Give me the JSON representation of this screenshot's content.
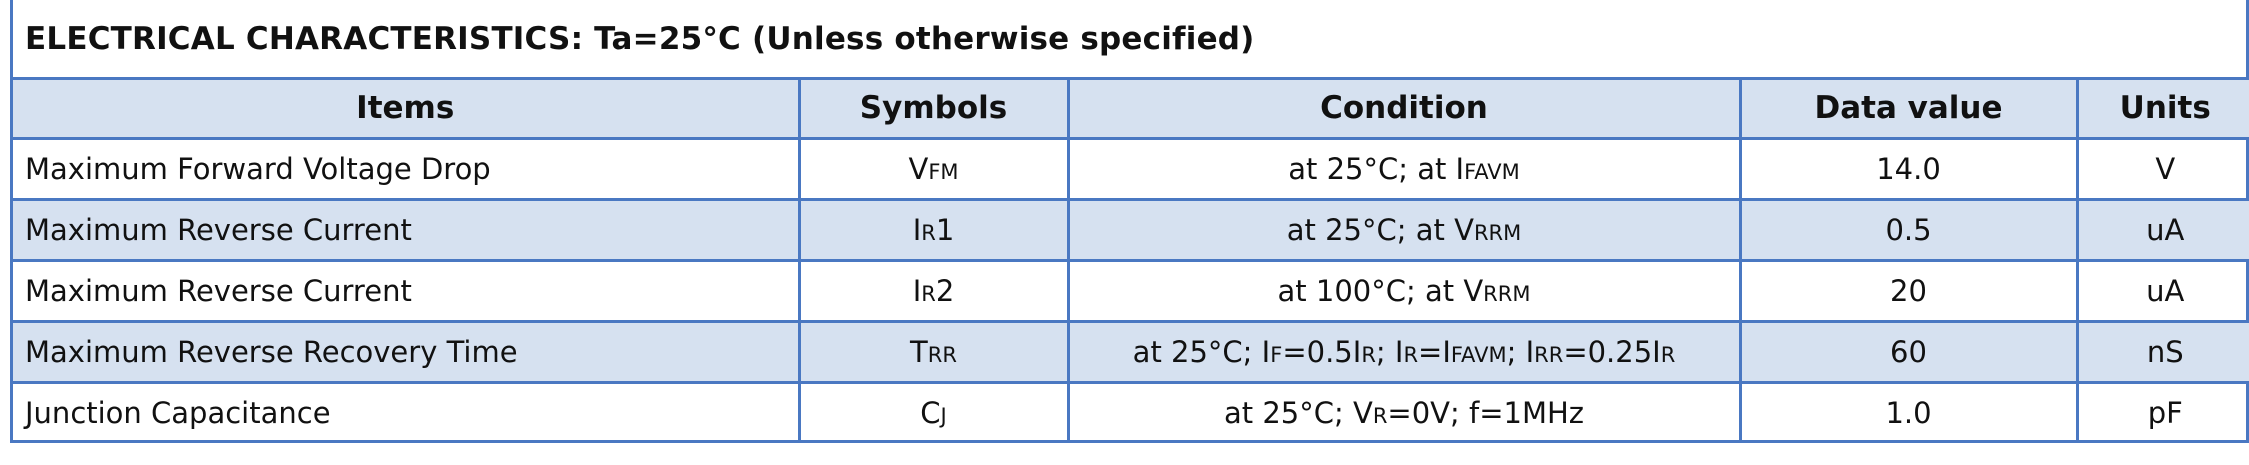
{
  "title": "ELECTRICAL CHARACTERISTICS:  Ta=25°C  (Unless otherwise specified)",
  "headers": {
    "items": "Items",
    "symbols": "Symbols",
    "condition": "Condition",
    "data_value": "Data value",
    "units": "Units"
  },
  "rows": [
    {
      "item": "Maximum Forward Voltage Drop",
      "symbol": [
        {
          "t": "V"
        },
        {
          "t": "FM",
          "sub": true
        }
      ],
      "condition": [
        {
          "t": "at 25°C; at I"
        },
        {
          "t": "FAVM",
          "sub": true
        }
      ],
      "value": "14.0",
      "unit": "V"
    },
    {
      "item": "Maximum Reverse Current",
      "symbol": [
        {
          "t": "I"
        },
        {
          "t": "R",
          "sub": true
        },
        {
          "t": "1"
        }
      ],
      "condition": [
        {
          "t": "at 25°C; at V"
        },
        {
          "t": "RRM",
          "sub": true
        }
      ],
      "value": "0.5",
      "unit": "uA"
    },
    {
      "item": "Maximum Reverse Current",
      "symbol": [
        {
          "t": "I"
        },
        {
          "t": "R",
          "sub": true
        },
        {
          "t": "2"
        }
      ],
      "condition": [
        {
          "t": "at 100°C; at V"
        },
        {
          "t": "RRM",
          "sub": true
        }
      ],
      "value": "20",
      "unit": "uA"
    },
    {
      "item": "Maximum Reverse Recovery Time",
      "symbol": [
        {
          "t": "T"
        },
        {
          "t": "RR",
          "sub": true
        }
      ],
      "condition": [
        {
          "t": "at 25°C; I"
        },
        {
          "t": "F",
          "sub": true
        },
        {
          "t": "=0.5I"
        },
        {
          "t": "R",
          "sub": true
        },
        {
          "t": "; I"
        },
        {
          "t": "R",
          "sub": true
        },
        {
          "t": "=I"
        },
        {
          "t": "FAVM",
          "sub": true
        },
        {
          "t": "; I"
        },
        {
          "t": "RR",
          "sub": true
        },
        {
          "t": "=0.25I"
        },
        {
          "t": "R",
          "sub": true
        }
      ],
      "value": "60",
      "unit": "nS"
    },
    {
      "item": "Junction Capacitance",
      "symbol": [
        {
          "t": "C"
        },
        {
          "t": "J",
          "sub": true
        }
      ],
      "condition": [
        {
          "t": "at 25°C; V"
        },
        {
          "t": "R",
          "sub": true
        },
        {
          "t": "=0V; f=1MHz"
        }
      ],
      "value": "1.0",
      "unit": "pF"
    }
  ],
  "colors": {
    "border": "#4a78c2",
    "shade": "#d6e1f0"
  }
}
